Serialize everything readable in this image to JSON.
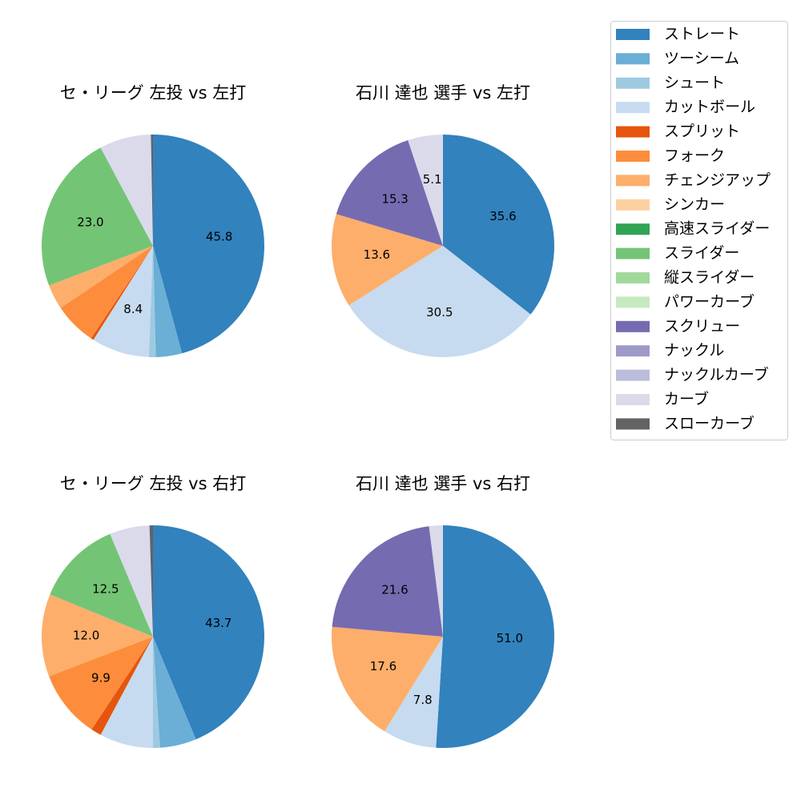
{
  "legend": {
    "labels": [
      "ストレート",
      "ツーシーム",
      "シュート",
      "カットボール",
      "スプリット",
      "フォーク",
      "チェンジアップ",
      "シンカー",
      "高速スライダー",
      "スライダー",
      "縦スライダー",
      "パワーカーブ",
      "スクリュー",
      "ナックル",
      "ナックルカーブ",
      "カーブ",
      "スローカーブ"
    ],
    "colors": [
      "#3182bd",
      "#6baed6",
      "#9ecae1",
      "#c6dbef",
      "#e6550d",
      "#fd8d3c",
      "#fdae6b",
      "#fdd0a2",
      "#31a354",
      "#74c476",
      "#a1d99b",
      "#c7e9c0",
      "#756bb1",
      "#9e9ac8",
      "#bcbddc",
      "#dadaeb",
      "#636363"
    ]
  },
  "chart_data": [
    {
      "type": "pie",
      "title": "セ・リーグ 左投 vs 左打",
      "categories": [
        "ストレート",
        "ツーシーム",
        "シュート",
        "カットボール",
        "スプリット",
        "フォーク",
        "チェンジアップ",
        "スライダー",
        "カーブ",
        "スローカーブ"
      ],
      "values": [
        45.8,
        3.8,
        1.0,
        8.4,
        0.4,
        6.2,
        3.6,
        23.0,
        7.5,
        0.3
      ],
      "value_labels": [
        "45.8",
        null,
        null,
        "8.4",
        null,
        null,
        null,
        "23.0",
        null,
        null
      ]
    },
    {
      "type": "pie",
      "title": "石川 達也 選手 vs 左打",
      "categories": [
        "ストレート",
        "カットボール",
        "チェンジアップ",
        "スクリュー",
        "カーブ"
      ],
      "values": [
        35.6,
        30.5,
        13.6,
        15.3,
        5.1
      ],
      "value_labels": [
        "35.6",
        "30.5",
        "13.6",
        "15.3",
        "5.1"
      ]
    },
    {
      "type": "pie",
      "title": "セ・リーグ 左投 vs 右打",
      "categories": [
        "ストレート",
        "ツーシーム",
        "シュート",
        "カットボール",
        "スプリット",
        "フォーク",
        "チェンジアップ",
        "スライダー",
        "カーブ",
        "スローカーブ"
      ],
      "values": [
        43.7,
        5.3,
        1.0,
        7.8,
        1.5,
        9.9,
        12.0,
        12.5,
        5.8,
        0.5
      ],
      "value_labels": [
        "43.7",
        null,
        null,
        null,
        null,
        "9.9",
        "12.0",
        "12.5",
        null,
        null
      ]
    },
    {
      "type": "pie",
      "title": "石川 達也 選手 vs 右打",
      "categories": [
        "ストレート",
        "カットボール",
        "チェンジアップ",
        "スクリュー",
        "カーブ"
      ],
      "values": [
        51.0,
        7.8,
        17.6,
        21.6,
        2.0
      ],
      "value_labels": [
        "51.0",
        "7.8",
        "17.6",
        "21.6",
        null
      ]
    }
  ]
}
